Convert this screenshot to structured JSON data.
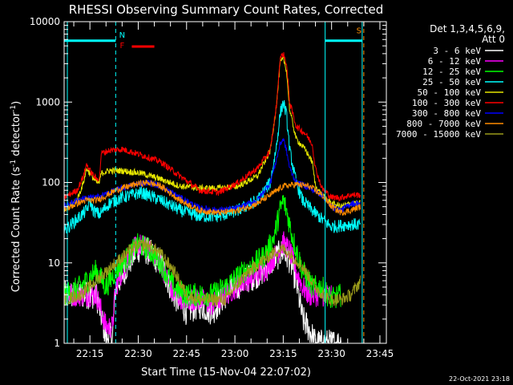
{
  "chart_data": {
    "type": "line",
    "title": "RHESSI Observing Summary Count Rates, Corrected",
    "xlabel": "Start Time (15-Nov-04 22:07:02)",
    "ylabel_main": "Corrected Count Rate (s",
    "ylabel_sup1": "-1",
    "ylabel_mid": " detector",
    "ylabel_sup2": "-1",
    "ylabel_end": ")",
    "y_scale": "log",
    "xlim_minutes": [
      0,
      100
    ],
    "ylim": [
      1,
      10000
    ],
    "x_ticks": [
      {
        "label": "22:15",
        "minute": 8
      },
      {
        "label": "22:30",
        "minute": 23
      },
      {
        "label": "22:45",
        "minute": 38
      },
      {
        "label": "23:00",
        "minute": 53
      },
      {
        "label": "23:15",
        "minute": 68
      },
      {
        "label": "23:30",
        "minute": 83
      },
      {
        "label": "23:45",
        "minute": 98
      }
    ],
    "y_ticks": [
      {
        "label": "1",
        "value": 1
      },
      {
        "label": "10",
        "value": 10
      },
      {
        "label": "100",
        "value": 100
      },
      {
        "label": "1000",
        "value": 1000
      },
      {
        "label": "10000",
        "value": 10000
      }
    ],
    "legend_header": [
      "Det 1,3,4,5,6,9,",
      "Att 0"
    ],
    "legend_position": "right",
    "series": [
      {
        "name": "3 - 6 keV",
        "color": "#ffffff",
        "points": [
          [
            0,
            4
          ],
          [
            5,
            4
          ],
          [
            10,
            4
          ],
          [
            13,
            1.2
          ],
          [
            15,
            1.2
          ],
          [
            16,
            5
          ],
          [
            20,
            10
          ],
          [
            23,
            15
          ],
          [
            26,
            14
          ],
          [
            30,
            10
          ],
          [
            34,
            4
          ],
          [
            38,
            2.5
          ],
          [
            42,
            3
          ],
          [
            46,
            2.5
          ],
          [
            50,
            4
          ],
          [
            56,
            6
          ],
          [
            62,
            8
          ],
          [
            66,
            12
          ],
          [
            68,
            14
          ],
          [
            70,
            11
          ],
          [
            72,
            6
          ],
          [
            74,
            2
          ],
          [
            76,
            1.5
          ],
          [
            78,
            1
          ],
          [
            80,
            1
          ],
          [
            83,
            1
          ],
          [
            86,
            1
          ]
        ],
        "bind_label": "l0",
        "noise": 0.18
      },
      {
        "name": "6 - 12 keV",
        "color": "#ff00ff",
        "points": [
          [
            0,
            4
          ],
          [
            5,
            4
          ],
          [
            10,
            4
          ],
          [
            13,
            1.6
          ],
          [
            15,
            1.6
          ],
          [
            16,
            5
          ],
          [
            20,
            12
          ],
          [
            23,
            17
          ],
          [
            26,
            15
          ],
          [
            30,
            10
          ],
          [
            34,
            4
          ],
          [
            38,
            3.5
          ],
          [
            42,
            3.5
          ],
          [
            46,
            3
          ],
          [
            50,
            4
          ],
          [
            56,
            6
          ],
          [
            62,
            8
          ],
          [
            66,
            13
          ],
          [
            68,
            18
          ],
          [
            70,
            14
          ],
          [
            72,
            8
          ],
          [
            74,
            5
          ],
          [
            76,
            4
          ],
          [
            80,
            4
          ],
          [
            83,
            4
          ]
        ],
        "bind_label": "l1",
        "noise": 0.15
      },
      {
        "name": "12 - 25 keV",
        "color": "#00ff00",
        "points": [
          [
            0,
            4
          ],
          [
            5,
            5
          ],
          [
            10,
            8
          ],
          [
            13,
            5
          ],
          [
            16,
            8
          ],
          [
            20,
            12
          ],
          [
            23,
            17
          ],
          [
            26,
            15
          ],
          [
            30,
            10
          ],
          [
            34,
            5
          ],
          [
            38,
            4
          ],
          [
            42,
            4
          ],
          [
            46,
            4
          ],
          [
            50,
            5
          ],
          [
            56,
            8
          ],
          [
            62,
            12
          ],
          [
            65,
            20
          ],
          [
            67,
            45
          ],
          [
            68,
            60
          ],
          [
            69,
            45
          ],
          [
            71,
            20
          ],
          [
            74,
            8
          ],
          [
            77,
            5
          ],
          [
            80,
            5
          ],
          [
            83,
            3.5
          ],
          [
            86,
            4
          ]
        ],
        "bind_label": "l2",
        "noise": 0.15
      },
      {
        "name": "25 - 50 keV",
        "color": "#00ffff",
        "points": [
          [
            0,
            25
          ],
          [
            4,
            35
          ],
          [
            7,
            45
          ],
          [
            8,
            60
          ],
          [
            9,
            45
          ],
          [
            11,
            40
          ],
          [
            14,
            55
          ],
          [
            18,
            65
          ],
          [
            24,
            75
          ],
          [
            30,
            60
          ],
          [
            36,
            45
          ],
          [
            42,
            38
          ],
          [
            48,
            38
          ],
          [
            54,
            45
          ],
          [
            60,
            60
          ],
          [
            64,
            100
          ],
          [
            66,
            300
          ],
          [
            67,
            700
          ],
          [
            68,
            1000
          ],
          [
            69,
            700
          ],
          [
            70,
            250
          ],
          [
            72,
            100
          ],
          [
            74,
            60
          ],
          [
            77,
            45
          ],
          [
            80,
            35
          ],
          [
            83,
            28
          ],
          [
            88,
            30
          ],
          [
            92,
            30
          ]
        ],
        "bind_label": "l3",
        "noise": 0.08
      },
      {
        "name": "50 - 100 keV",
        "color": "#e6e600",
        "points": [
          [
            0,
            45
          ],
          [
            4,
            60
          ],
          [
            6,
            100
          ],
          [
            7,
            150
          ],
          [
            8,
            130
          ],
          [
            10,
            100
          ],
          [
            11,
            100
          ],
          [
            11.5,
            130
          ],
          [
            14,
            140
          ],
          [
            18,
            140
          ],
          [
            24,
            130
          ],
          [
            30,
            110
          ],
          [
            36,
            90
          ],
          [
            42,
            85
          ],
          [
            48,
            85
          ],
          [
            54,
            90
          ],
          [
            60,
            120
          ],
          [
            64,
            250
          ],
          [
            66,
            1000
          ],
          [
            67,
            3000
          ],
          [
            68,
            3500
          ],
          [
            69,
            2500
          ],
          [
            70,
            800
          ],
          [
            72,
            350
          ],
          [
            75,
            250
          ],
          [
            77,
            180
          ],
          [
            78,
            90
          ],
          [
            80,
            70
          ],
          [
            83,
            55
          ],
          [
            86,
            50
          ],
          [
            89,
            55
          ],
          [
            92,
            55
          ]
        ],
        "bind_label": "l4",
        "noise": 0.04
      },
      {
        "name": "100 - 300 keV",
        "color": "#ff0000",
        "points": [
          [
            0,
            65
          ],
          [
            4,
            80
          ],
          [
            6,
            120
          ],
          [
            7,
            170
          ],
          [
            8,
            140
          ],
          [
            10,
            110
          ],
          [
            11,
            115
          ],
          [
            11.5,
            230
          ],
          [
            14,
            250
          ],
          [
            18,
            260
          ],
          [
            24,
            220
          ],
          [
            30,
            180
          ],
          [
            36,
            120
          ],
          [
            42,
            80
          ],
          [
            48,
            75
          ],
          [
            54,
            100
          ],
          [
            60,
            150
          ],
          [
            64,
            250
          ],
          [
            66,
            1000
          ],
          [
            67,
            3500
          ],
          [
            68,
            4000
          ],
          [
            69,
            3000
          ],
          [
            70,
            1000
          ],
          [
            72,
            500
          ],
          [
            75,
            400
          ],
          [
            77,
            300
          ],
          [
            78,
            150
          ],
          [
            80,
            85
          ],
          [
            83,
            65
          ],
          [
            86,
            65
          ],
          [
            89,
            70
          ],
          [
            92,
            70
          ]
        ],
        "bind_label": "l5",
        "noise": 0.04
      },
      {
        "name": "300 - 800 keV",
        "color": "#0000ff",
        "points": [
          [
            0,
            50
          ],
          [
            4,
            60
          ],
          [
            7,
            65
          ],
          [
            10,
            65
          ],
          [
            12,
            70
          ],
          [
            16,
            80
          ],
          [
            22,
            95
          ],
          [
            26,
            100
          ],
          [
            30,
            90
          ],
          [
            36,
            65
          ],
          [
            42,
            48
          ],
          [
            48,
            45
          ],
          [
            54,
            48
          ],
          [
            60,
            60
          ],
          [
            64,
            100
          ],
          [
            66,
            200
          ],
          [
            67,
            300
          ],
          [
            68,
            350
          ],
          [
            69,
            250
          ],
          [
            70,
            150
          ],
          [
            72,
            100
          ],
          [
            75,
            90
          ],
          [
            80,
            70
          ],
          [
            83,
            50
          ],
          [
            86,
            45
          ],
          [
            89,
            55
          ],
          [
            92,
            55
          ]
        ],
        "bind_label": "l6",
        "noise": 0.04
      },
      {
        "name": "800 - 7000 keV",
        "color": "#ff8c00",
        "points": [
          [
            0,
            45
          ],
          [
            4,
            55
          ],
          [
            7,
            60
          ],
          [
            10,
            60
          ],
          [
            12,
            65
          ],
          [
            16,
            80
          ],
          [
            22,
            95
          ],
          [
            26,
            100
          ],
          [
            30,
            90
          ],
          [
            36,
            60
          ],
          [
            42,
            45
          ],
          [
            48,
            42
          ],
          [
            54,
            45
          ],
          [
            60,
            55
          ],
          [
            64,
            70
          ],
          [
            68,
            90
          ],
          [
            72,
            95
          ],
          [
            76,
            90
          ],
          [
            80,
            70
          ],
          [
            83,
            50
          ],
          [
            86,
            42
          ],
          [
            89,
            45
          ],
          [
            92,
            50
          ]
        ],
        "bind_label": "l7",
        "noise": 0.04
      },
      {
        "name": "7000 - 15000 keV",
        "color": "#9a9a1a",
        "points": [
          [
            0,
            3.5
          ],
          [
            5,
            4
          ],
          [
            10,
            6
          ],
          [
            16,
            10
          ],
          [
            22,
            16
          ],
          [
            26,
            17
          ],
          [
            30,
            13
          ],
          [
            34,
            8
          ],
          [
            38,
            4
          ],
          [
            42,
            3.5
          ],
          [
            46,
            3.5
          ],
          [
            50,
            3.5
          ],
          [
            56,
            7
          ],
          [
            62,
            11
          ],
          [
            66,
            14
          ],
          [
            68,
            15
          ],
          [
            70,
            13
          ],
          [
            74,
            9
          ],
          [
            78,
            5
          ],
          [
            82,
            3.5
          ],
          [
            86,
            3.5
          ],
          [
            89,
            4
          ],
          [
            92,
            6
          ]
        ],
        "bind_label": "l8",
        "noise": 0.08
      }
    ],
    "bar_segments": [
      {
        "color": "#00ffff",
        "y": 5800,
        "ranges": [
          [
            0,
            16
          ],
          [
            81,
            92.5
          ]
        ]
      }
    ],
    "vertical_markers": [
      {
        "minute": 1,
        "color": "#00ffff",
        "style": "solid"
      },
      {
        "minute": 16,
        "color": "#00ffff",
        "style": "dashed"
      },
      {
        "minute": 81,
        "color": "#00ffff",
        "style": "solid"
      },
      {
        "minute": 93,
        "color": "#ff8c00",
        "style": "dashed"
      },
      {
        "minute": 92.5,
        "color": "#00ffff",
        "style": "solid"
      }
    ],
    "flag_markers": [
      {
        "label": "N",
        "color": "#00ffff",
        "minute": 18,
        "y": 6300
      },
      {
        "label": "F",
        "color": "#ff0000",
        "minute": 18,
        "y": 4700
      },
      {
        "label": "S",
        "color": "#ff8c00",
        "minute": 91.5,
        "y": 7200
      }
    ],
    "flare_bar": {
      "color": "#ff0000",
      "range": [
        21,
        28
      ],
      "y": 4900
    },
    "timestamp": "22-Oct-2021 23:18"
  }
}
